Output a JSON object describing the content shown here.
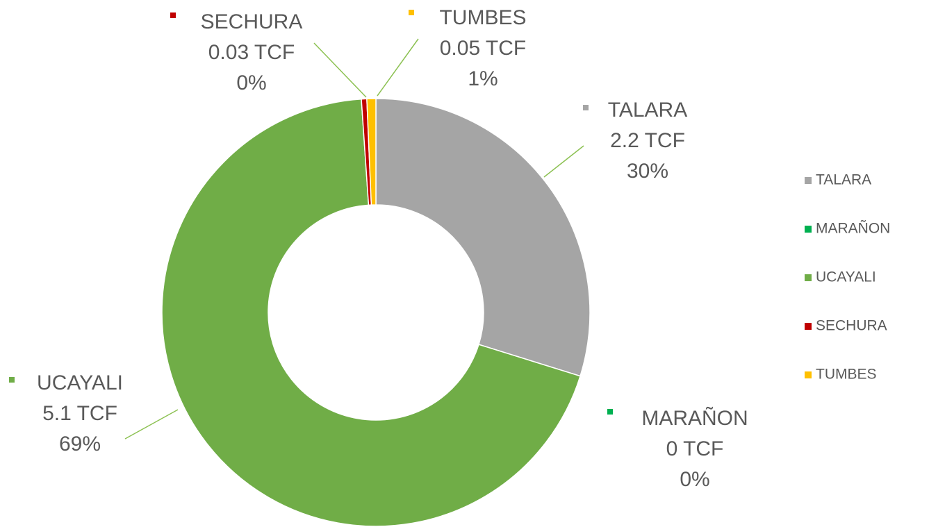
{
  "chart_data": {
    "type": "donut",
    "categories": [
      "TALARA",
      "MARAÑON",
      "UCAYALI",
      "SECHURA",
      "TUMBES"
    ],
    "values": [
      2.2,
      0,
      5.1,
      0.03,
      0.05
    ],
    "value_labels": [
      "2.2 TCF",
      "0 TCF",
      "5.1 TCF",
      "0.03 TCF",
      "0.05 TCF"
    ],
    "percent_labels": [
      "30%",
      "0%",
      "69%",
      "0%",
      "1%"
    ],
    "colors": [
      "#a5a5a5",
      "#00b050",
      "#70ad47",
      "#c00000",
      "#ffc000"
    ],
    "legend": "right"
  }
}
